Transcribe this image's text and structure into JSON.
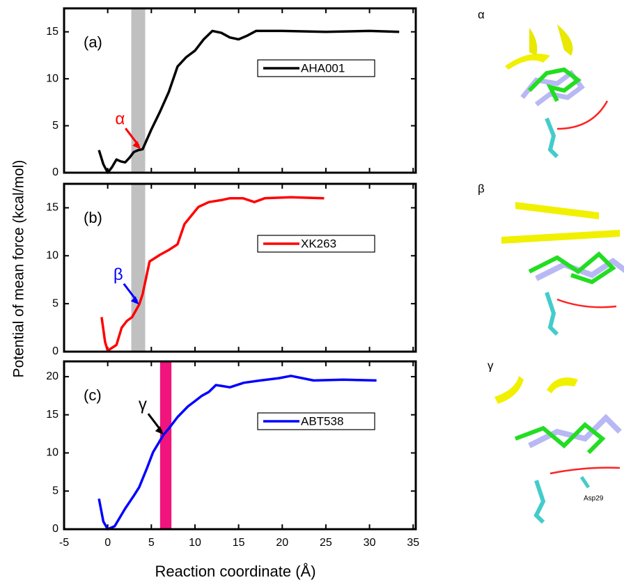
{
  "figure": {
    "ylabel": "Potential of mean force (kcal/mol)",
    "xlabel": "Reaction coordinate (Å)"
  },
  "chart_data": [
    {
      "type": "line",
      "panel_label": "(a)",
      "x": [
        -1,
        -0.5,
        0,
        0.5,
        1,
        1.5,
        2,
        2.5,
        3,
        3.5,
        4,
        5,
        6,
        7,
        8,
        9,
        10,
        11,
        12,
        13,
        14,
        15,
        16,
        17,
        20,
        25,
        30,
        33.4
      ],
      "series": [
        {
          "name": "AHA001",
          "color": "#000000",
          "values": [
            2.4,
            0.9,
            0,
            0.6,
            1.4,
            1.2,
            1.1,
            1.6,
            2.2,
            2.4,
            2.5,
            4.6,
            6.5,
            8.6,
            11.3,
            12.3,
            13,
            14.2,
            15.1,
            14.9,
            14.4,
            14.2,
            14.6,
            15.1,
            15.1,
            15.0,
            15.1,
            15.0
          ]
        }
      ],
      "highlight": {
        "x": [
          2.7,
          4.3
        ],
        "color": "#c0c0c0"
      },
      "annotation": {
        "text": "α",
        "x": 3.8,
        "y": 2.5,
        "color": "#ff0000"
      },
      "xlim": [
        -5,
        35.3
      ],
      "ylim": [
        0,
        17.5
      ],
      "yticks": [
        0,
        5,
        10,
        15
      ],
      "legend": "upper right"
    },
    {
      "type": "line",
      "panel_label": "(b)",
      "x": [
        -0.7,
        -0.3,
        0,
        0.5,
        1,
        1.6,
        2.2,
        2.8,
        3.6,
        4,
        4.8,
        6,
        7,
        8,
        8.8,
        9.6,
        10.4,
        11.6,
        13,
        14,
        15.5,
        16.8,
        18,
        21,
        24.8
      ],
      "series": [
        {
          "name": "XK263",
          "color": "#ff0000",
          "values": [
            3.6,
            1,
            0.1,
            0.4,
            0.7,
            2.5,
            3.2,
            3.6,
            4.9,
            6,
            9.4,
            10.1,
            10.6,
            11.2,
            13.3,
            14.2,
            15.1,
            15.6,
            15.8,
            16,
            16,
            15.6,
            16,
            16.1,
            16.0
          ]
        }
      ],
      "highlight": {
        "x": [
          2.7,
          4.3
        ],
        "color": "#c0c0c0"
      },
      "annotation": {
        "text": "β",
        "x": 3.6,
        "y": 4.9,
        "color": "#0000ff"
      },
      "xlim": [
        -5,
        35.3
      ],
      "ylim": [
        0,
        17.5
      ],
      "yticks": [
        0,
        5,
        10,
        15
      ],
      "legend": "upper right"
    },
    {
      "type": "line",
      "panel_label": "(c)",
      "x": [
        -1,
        -0.5,
        0,
        0.8,
        2,
        3,
        3.6,
        4.5,
        5.2,
        6.4,
        7,
        8,
        9.2,
        10,
        10.8,
        11.6,
        12.4,
        13,
        14,
        15.6,
        17.5,
        19.6,
        21,
        23.6,
        27,
        30.8
      ],
      "series": [
        {
          "name": "ABT538",
          "color": "#0000ff",
          "values": [
            4,
            1,
            0,
            0.4,
            2.7,
            4.4,
            5.5,
            8,
            10.1,
            12.4,
            13.2,
            14.7,
            16.1,
            16.8,
            17.5,
            18,
            18.9,
            18.8,
            18.6,
            19.2,
            19.5,
            19.8,
            20.1,
            19.5,
            19.6,
            19.5
          ]
        }
      ],
      "highlight": {
        "x": [
          6.0,
          7.3
        ],
        "color": "#f0147c"
      },
      "annotation": {
        "text": "γ",
        "x": 6.4,
        "y": 12.4,
        "color": "#000000"
      },
      "xlim": [
        -5,
        35.3
      ],
      "ylim": [
        0,
        22
      ],
      "yticks": [
        0,
        5,
        10,
        15,
        20
      ],
      "xticks": [
        -5,
        0,
        5,
        10,
        15,
        20,
        25,
        30,
        35
      ],
      "legend": "upper right"
    }
  ],
  "structures": [
    {
      "label": "α"
    },
    {
      "label": "β"
    },
    {
      "label": "γ",
      "residue": "Asp29"
    }
  ]
}
